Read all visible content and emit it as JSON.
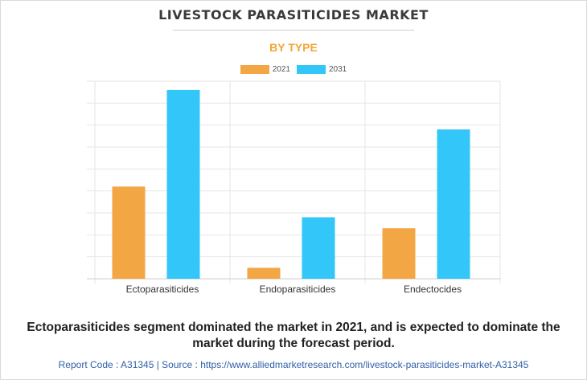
{
  "header": {
    "title": "LIVESTOCK PARASITICIDES MARKET",
    "subtitle": "BY TYPE"
  },
  "legend": [
    {
      "label": "2021",
      "color": "#f3a644"
    },
    {
      "label": "2031",
      "color": "#33c6f8"
    }
  ],
  "chart_data": {
    "type": "bar",
    "title": "LIVESTOCK PARASITICIDES MARKET",
    "subtitle": "BY TYPE",
    "categories": [
      "Ectoparasiticides",
      "Endoparasiticides",
      "Endectocides"
    ],
    "series": [
      {
        "name": "2021",
        "color": "#f3a644",
        "values": [
          4.2,
          0.5,
          2.3
        ]
      },
      {
        "name": "2031",
        "color": "#33c6f8",
        "values": [
          8.6,
          2.8,
          6.8
        ]
      }
    ],
    "ylim": [
      0,
      9
    ],
    "y_tick_labels_shown": false,
    "grid": true,
    "legend_position": "top-center"
  },
  "headline": "Ectoparasiticides segment dominated the market in 2021, and is expected to dominate the market during the forecast period.",
  "footer": "Report Code : A31345  |  Source : https://www.alliedmarketresearch.com/livestock-parasiticides-market-A31345"
}
